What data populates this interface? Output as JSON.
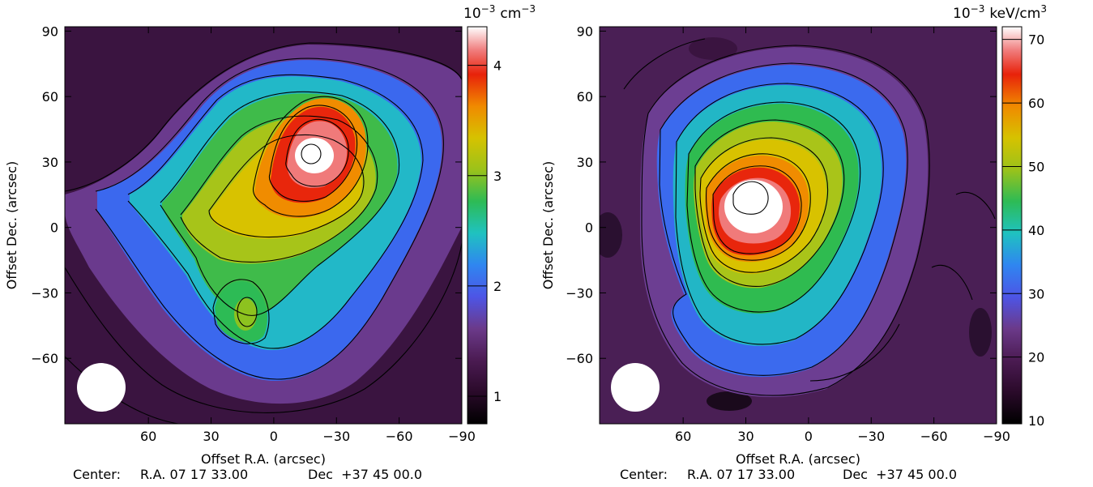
{
  "chart_data": [
    {
      "type": "heatmap",
      "title": "",
      "xlabel": "Offset R.A. (arcsec)",
      "ylabel": "Offset Dec. (arcsec)",
      "xlim": [
        100,
        -90
      ],
      "ylim": [
        -90,
        92
      ],
      "x_ticks": [
        60,
        30,
        0,
        -30,
        -60,
        -90
      ],
      "x_tick_labels": [
        "60",
        "30",
        "0",
        "−30",
        "−60",
        "−90"
      ],
      "y_ticks": [
        90,
        60,
        30,
        0,
        -30,
        -60
      ],
      "y_tick_labels": [
        "90",
        "60",
        "30",
        "0",
        "−30",
        "−60"
      ],
      "colorbar": {
        "unit_base": "10",
        "unit_exp": "−3",
        "unit_text": "cm",
        "unit_exp2": "−3",
        "range": [
          0.75,
          4.35
        ],
        "ticks": [
          1,
          2,
          3,
          4
        ],
        "tick_labels": [
          "1",
          "2",
          "3",
          "4"
        ]
      },
      "peak_position": [
        -24,
        32
      ],
      "peak_value": 4.35,
      "secondary_peak_position": [
        3,
        -38
      ],
      "beam_marker": "white-circle-bottom-left",
      "contours": true,
      "center_caption": {
        "label": "Center:",
        "ra": "R.A. 07 17 33.00",
        "dec": "Dec  +37 45 00.0"
      }
    },
    {
      "type": "heatmap",
      "title": "",
      "xlabel": "Offset R.A. (arcsec)",
      "ylabel": "Offset Dec. (arcsec)",
      "xlim": [
        100,
        -90
      ],
      "ylim": [
        -90,
        92
      ],
      "x_ticks": [
        60,
        30,
        0,
        -30,
        -60,
        -90
      ],
      "x_tick_labels": [
        "60",
        "30",
        "0",
        "−30",
        "−60",
        "−90"
      ],
      "y_ticks": [
        90,
        60,
        30,
        0,
        -30,
        -60
      ],
      "y_tick_labels": [
        "90",
        "60",
        "30",
        "0",
        "−30",
        "−60"
      ],
      "colorbar": {
        "unit_base": "10",
        "unit_exp": "−3",
        "unit_text": "keV/cm",
        "unit_exp2": "3",
        "range": [
          9.5,
          72
        ],
        "ticks": [
          10,
          20,
          30,
          40,
          50,
          60,
          70
        ],
        "tick_labels": [
          "10",
          "20",
          "30",
          "40",
          "50",
          "60",
          "70"
        ]
      },
      "peak_position": [
        18,
        12
      ],
      "peak_value": 72,
      "beam_marker": "white-circle-bottom-left",
      "contours": true,
      "center_caption": {
        "label": "Center:",
        "ra": "R.A. 07 17 33.00",
        "dec": "Dec  +37 45 00.0"
      }
    }
  ],
  "colors": {
    "colormap": [
      "#000000",
      "#2a0a2a",
      "#4b1b52",
      "#6b3a8a",
      "#4d55e6",
      "#2f86f0",
      "#1fc2c0",
      "#2dbb55",
      "#9bc21a",
      "#d6c200",
      "#f08a00",
      "#e8220a",
      "#f07b7b",
      "#ffffff"
    ],
    "contour": "#000000",
    "beam": "#ffffff"
  }
}
